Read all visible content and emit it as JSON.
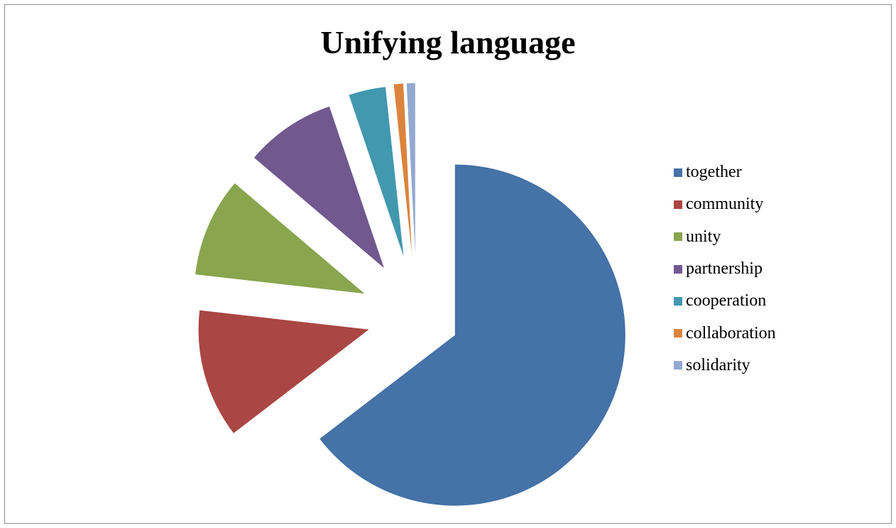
{
  "chart_data": {
    "type": "pie",
    "title": "Unifying language",
    "exploded": true,
    "legend_position": "right",
    "slices": [
      {
        "label": "together",
        "value": 64.6,
        "color": "#4572A7"
      },
      {
        "label": "community",
        "value": 12.2,
        "color": "#AA4643"
      },
      {
        "label": "unity",
        "value": 9.4,
        "color": "#89A54E"
      },
      {
        "label": "partnership",
        "value": 8.6,
        "color": "#71588F"
      },
      {
        "label": "cooperation",
        "value": 3.5,
        "color": "#4198AF"
      },
      {
        "label": "collaboration",
        "value": 0.9,
        "color": "#DB843D"
      },
      {
        "label": "solidarity",
        "value": 0.8,
        "color": "#93A9CF"
      }
    ]
  }
}
